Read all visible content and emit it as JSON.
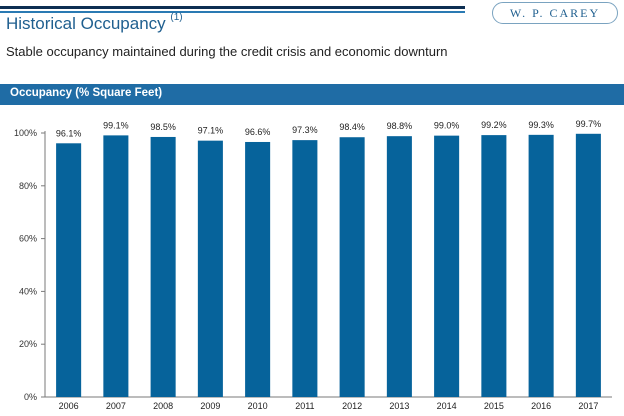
{
  "header": {
    "title": "Historical Occupancy",
    "footnote_ref": "(1)",
    "logo_text": "W. P. CAREY",
    "subtitle": "Stable occupancy maintained during the credit crisis and economic downturn"
  },
  "band": {
    "label": "Occupancy (% Square Feet)"
  },
  "colors": {
    "bar": "#06639b",
    "band": "#1f6ca5",
    "title": "#1f5f8f",
    "axis": "#7a7a7a"
  },
  "chart_data": {
    "type": "bar",
    "title": "Occupancy (% Square Feet)",
    "xlabel": "",
    "ylabel": "",
    "ylim": [
      0,
      100
    ],
    "yticks": [
      0,
      20,
      40,
      60,
      80,
      100
    ],
    "ytick_labels": [
      "0%",
      "20%",
      "40%",
      "60%",
      "80%",
      "100%"
    ],
    "categories": [
      "2006",
      "2007",
      "2008",
      "2009",
      "2010",
      "2011",
      "2012",
      "2013",
      "2014",
      "2015",
      "2016",
      "2017"
    ],
    "values": [
      96.1,
      99.1,
      98.5,
      97.1,
      96.6,
      97.3,
      98.4,
      98.8,
      99.0,
      99.2,
      99.3,
      99.7
    ],
    "data_labels": [
      "96.1%",
      "99.1%",
      "98.5%",
      "97.1%",
      "96.6%",
      "97.3%",
      "98.4%",
      "98.8%",
      "99.0%",
      "99.2%",
      "99.3%",
      "99.7%"
    ],
    "grid": false
  }
}
